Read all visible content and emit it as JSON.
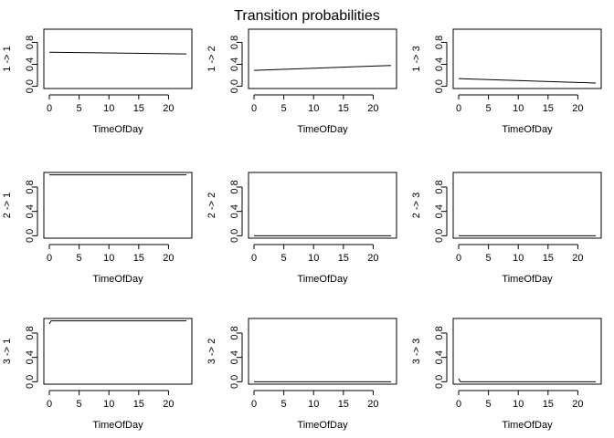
{
  "figure": {
    "title": "Transition probabilities"
  },
  "chart_data": [
    {
      "type": "line",
      "xlabel": "TimeOfDay",
      "ylabel": "1 -> 1",
      "xlim": [
        0,
        23
      ],
      "ylim": [
        0,
        1
      ],
      "x_ticks": [
        0,
        5,
        10,
        15,
        20
      ],
      "y_ticks": [
        0.0,
        0.4,
        0.8
      ],
      "y_tick_labels": [
        "0.0",
        "0.4",
        "0.8"
      ],
      "series": [
        {
          "x": [
            0,
            23
          ],
          "values": [
            0.62,
            0.59
          ]
        }
      ]
    },
    {
      "type": "line",
      "xlabel": "TimeOfDay",
      "ylabel": "1 -> 2",
      "xlim": [
        0,
        23
      ],
      "ylim": [
        0,
        1
      ],
      "x_ticks": [
        0,
        5,
        10,
        15,
        20
      ],
      "y_ticks": [
        0.0,
        0.4,
        0.8
      ],
      "y_tick_labels": [
        "0.0",
        "0.4",
        "0.8"
      ],
      "series": [
        {
          "x": [
            0,
            23
          ],
          "values": [
            0.29,
            0.38
          ]
        }
      ]
    },
    {
      "type": "line",
      "xlabel": "TimeOfDay",
      "ylabel": "1 -> 3",
      "xlim": [
        0,
        23
      ],
      "ylim": [
        0,
        1
      ],
      "x_ticks": [
        0,
        5,
        10,
        15,
        20
      ],
      "y_ticks": [
        0.0,
        0.4,
        0.8
      ],
      "y_tick_labels": [
        "0.0",
        "0.4",
        "0.8"
      ],
      "series": [
        {
          "x": [
            0,
            23
          ],
          "values": [
            0.14,
            0.06
          ]
        }
      ]
    },
    {
      "type": "line",
      "xlabel": "TimeOfDay",
      "ylabel": "2 -> 1",
      "xlim": [
        0,
        23
      ],
      "ylim": [
        0,
        1
      ],
      "x_ticks": [
        0,
        5,
        10,
        15,
        20
      ],
      "y_ticks": [
        0.0,
        0.4,
        0.8
      ],
      "y_tick_labels": [
        "0.0",
        "0.4",
        "0.8"
      ],
      "series": [
        {
          "x": [
            0,
            23
          ],
          "values": [
            1.0,
            1.0
          ]
        }
      ]
    },
    {
      "type": "line",
      "xlabel": "TimeOfDay",
      "ylabel": "2 -> 2",
      "xlim": [
        0,
        23
      ],
      "ylim": [
        0,
        1
      ],
      "x_ticks": [
        0,
        5,
        10,
        15,
        20
      ],
      "y_ticks": [
        0.0,
        0.4,
        0.8
      ],
      "y_tick_labels": [
        "0.0",
        "0.4",
        "0.8"
      ],
      "series": [
        {
          "x": [
            0,
            23
          ],
          "values": [
            0.0,
            0.0
          ]
        }
      ]
    },
    {
      "type": "line",
      "xlabel": "TimeOfDay",
      "ylabel": "2 -> 3",
      "xlim": [
        0,
        23
      ],
      "ylim": [
        0,
        1
      ],
      "x_ticks": [
        0,
        5,
        10,
        15,
        20
      ],
      "y_ticks": [
        0.0,
        0.4,
        0.8
      ],
      "y_tick_labels": [
        "0.0",
        "0.4",
        "0.8"
      ],
      "series": [
        {
          "x": [
            0,
            23
          ],
          "values": [
            0.0,
            0.0
          ]
        }
      ]
    },
    {
      "type": "line",
      "xlabel": "TimeOfDay",
      "ylabel": "3 -> 1",
      "xlim": [
        0,
        23
      ],
      "ylim": [
        0,
        1
      ],
      "x_ticks": [
        0,
        5,
        10,
        15,
        20
      ],
      "y_ticks": [
        0.0,
        0.4,
        0.8
      ],
      "y_tick_labels": [
        "0.0",
        "0.4",
        "0.8"
      ],
      "series": [
        {
          "x": [
            0,
            0.3,
            23
          ],
          "values": [
            0.95,
            1.0,
            1.0
          ]
        }
      ]
    },
    {
      "type": "line",
      "xlabel": "TimeOfDay",
      "ylabel": "3 -> 2",
      "xlim": [
        0,
        23
      ],
      "ylim": [
        0,
        1
      ],
      "x_ticks": [
        0,
        5,
        10,
        15,
        20
      ],
      "y_ticks": [
        0.0,
        0.4,
        0.8
      ],
      "y_tick_labels": [
        "0.0",
        "0.4",
        "0.8"
      ],
      "series": [
        {
          "x": [
            0,
            23
          ],
          "values": [
            0.0,
            0.0
          ]
        }
      ]
    },
    {
      "type": "line",
      "xlabel": "TimeOfDay",
      "ylabel": "3 -> 3",
      "xlim": [
        0,
        23
      ],
      "ylim": [
        0,
        1
      ],
      "x_ticks": [
        0,
        5,
        10,
        15,
        20
      ],
      "y_ticks": [
        0.0,
        0.4,
        0.8
      ],
      "y_tick_labels": [
        "0.0",
        "0.4",
        "0.8"
      ],
      "series": [
        {
          "x": [
            0,
            0.3,
            23
          ],
          "values": [
            0.05,
            0.0,
            0.0
          ]
        }
      ]
    }
  ]
}
